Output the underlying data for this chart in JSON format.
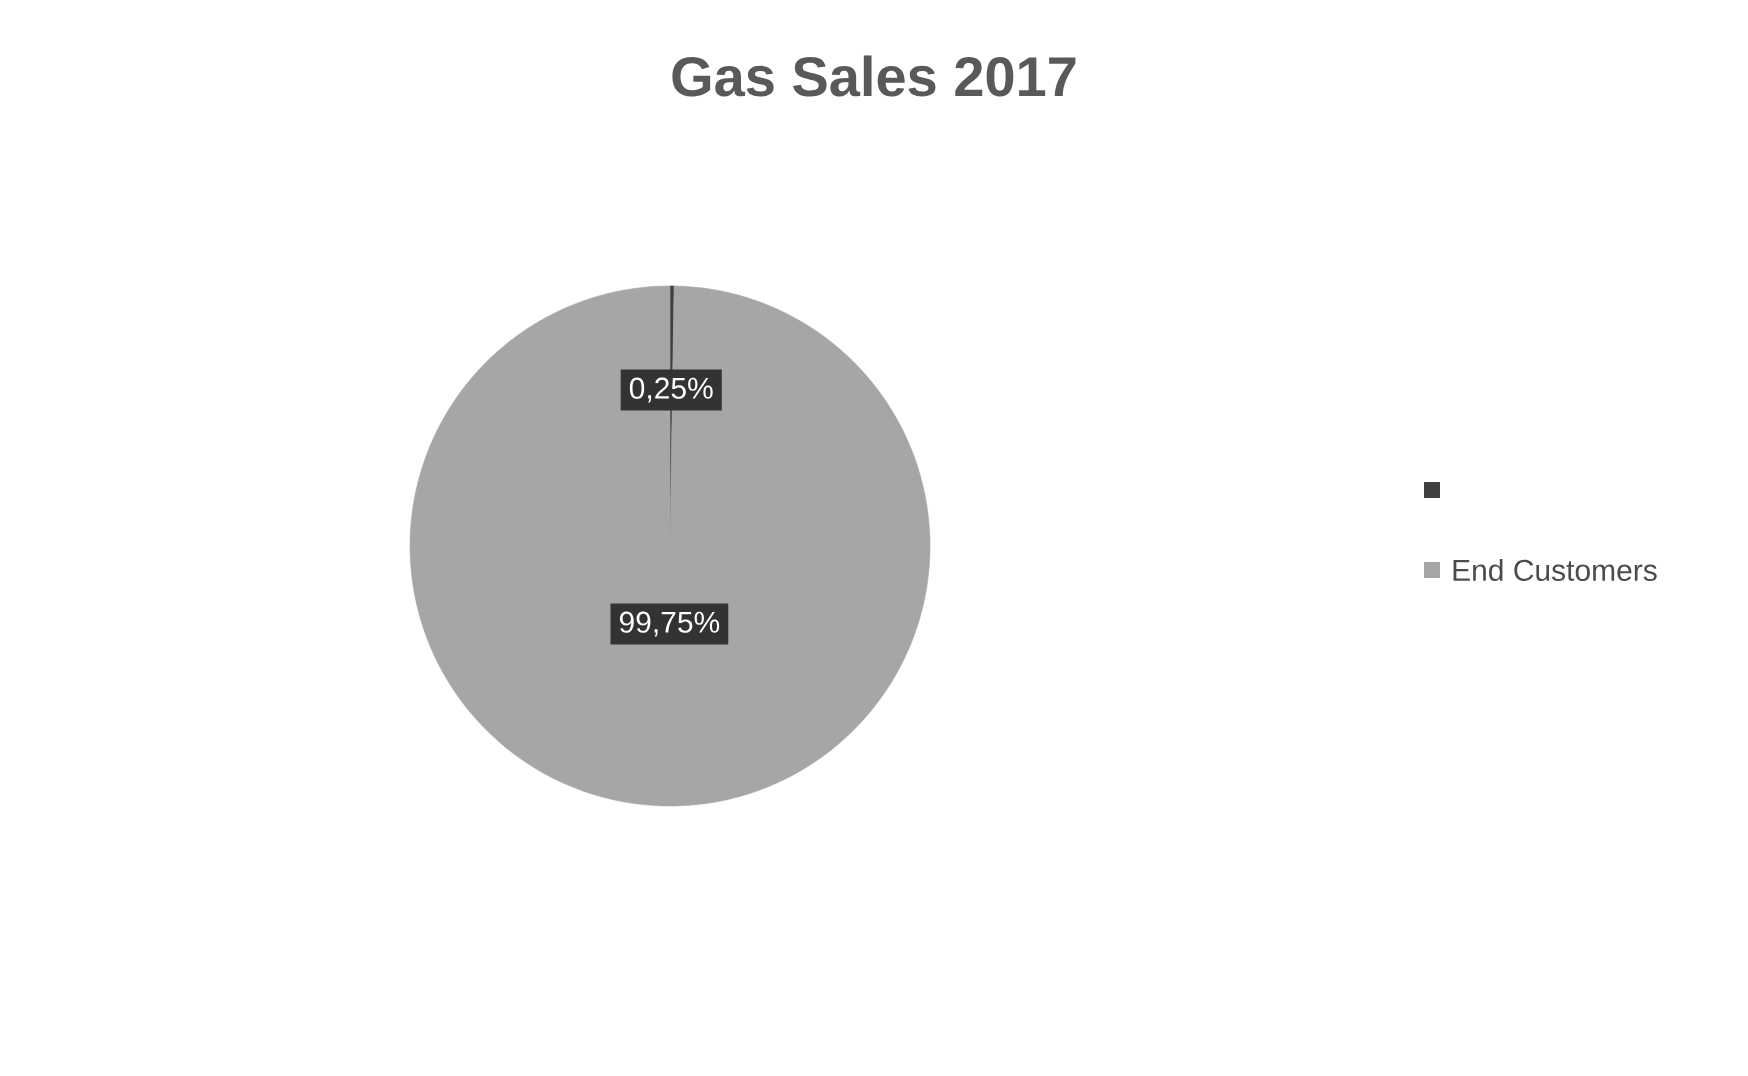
{
  "chart_data": {
    "type": "pie",
    "title": "Gas Sales 2017",
    "categories": [
      null,
      "End Customers"
    ],
    "values": [
      0.25,
      99.75
    ],
    "value_labels": [
      "0,25%",
      "99,75%"
    ],
    "colors": [
      "#404040",
      "#a6a6a6"
    ],
    "legend": "right"
  }
}
